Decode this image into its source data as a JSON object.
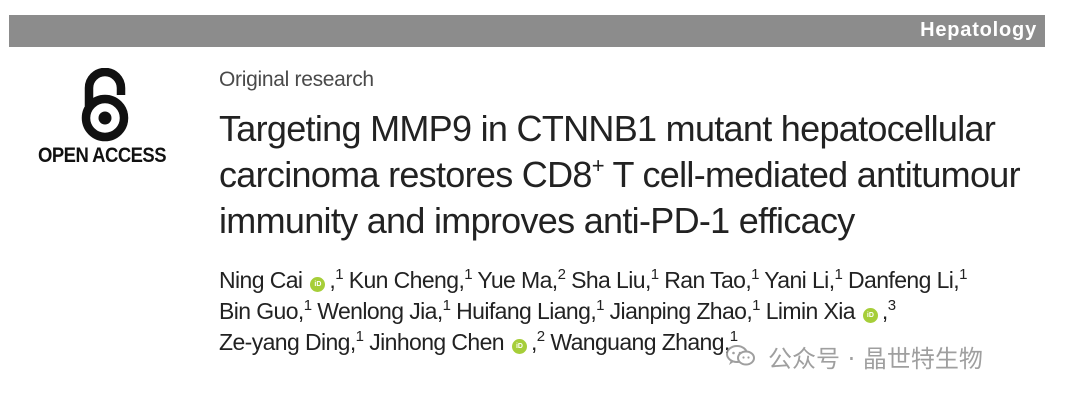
{
  "journal": {
    "banner_label": "Hepatology"
  },
  "open_access": {
    "label": "OPEN ACCESS",
    "icon": "open-access-lock-icon"
  },
  "article": {
    "section": "Original research",
    "title_lines": [
      {
        "text": "Targeting MMP9 in CTNNB1 mutant hepatocellular"
      },
      {
        "before": "carcinoma restores CD8",
        "sup": "+",
        "after": " T cell-mediated antitumour"
      },
      {
        "text": "immunity and improves anti-PD-1 efficacy"
      }
    ]
  },
  "author_lines": [
    [
      {
        "name": "Ning Cai",
        "orcid": true,
        "aff": "1"
      },
      {
        "name": "Kun Cheng",
        "aff": "1"
      },
      {
        "name": "Yue Ma",
        "aff": "2"
      },
      {
        "name": "Sha Liu",
        "aff": "1"
      },
      {
        "name": "Ran Tao",
        "aff": "1"
      },
      {
        "name": "Yani Li",
        "aff": "1"
      },
      {
        "name": "Danfeng Li",
        "aff": "1"
      }
    ],
    [
      {
        "name": "Bin Guo",
        "aff": "1"
      },
      {
        "name": "Wenlong Jia",
        "aff": "1"
      },
      {
        "name": "Huifang Liang",
        "aff": "1"
      },
      {
        "name": "Jianping Zhao",
        "aff": "1"
      },
      {
        "name": "Limin Xia",
        "orcid": true,
        "aff": "3"
      }
    ],
    [
      {
        "name": "Ze-yang Ding",
        "aff": "1"
      },
      {
        "name": "Jinhong Chen",
        "orcid": true,
        "aff": "2"
      },
      {
        "name": "Wanguang Zhang",
        "aff": "1"
      }
    ]
  ],
  "orcid_badge": {
    "text": "iD",
    "color": "#a6ce39"
  },
  "watermark": {
    "text": "公众号 · 晶世特生物",
    "icon": "wechat-icon"
  }
}
